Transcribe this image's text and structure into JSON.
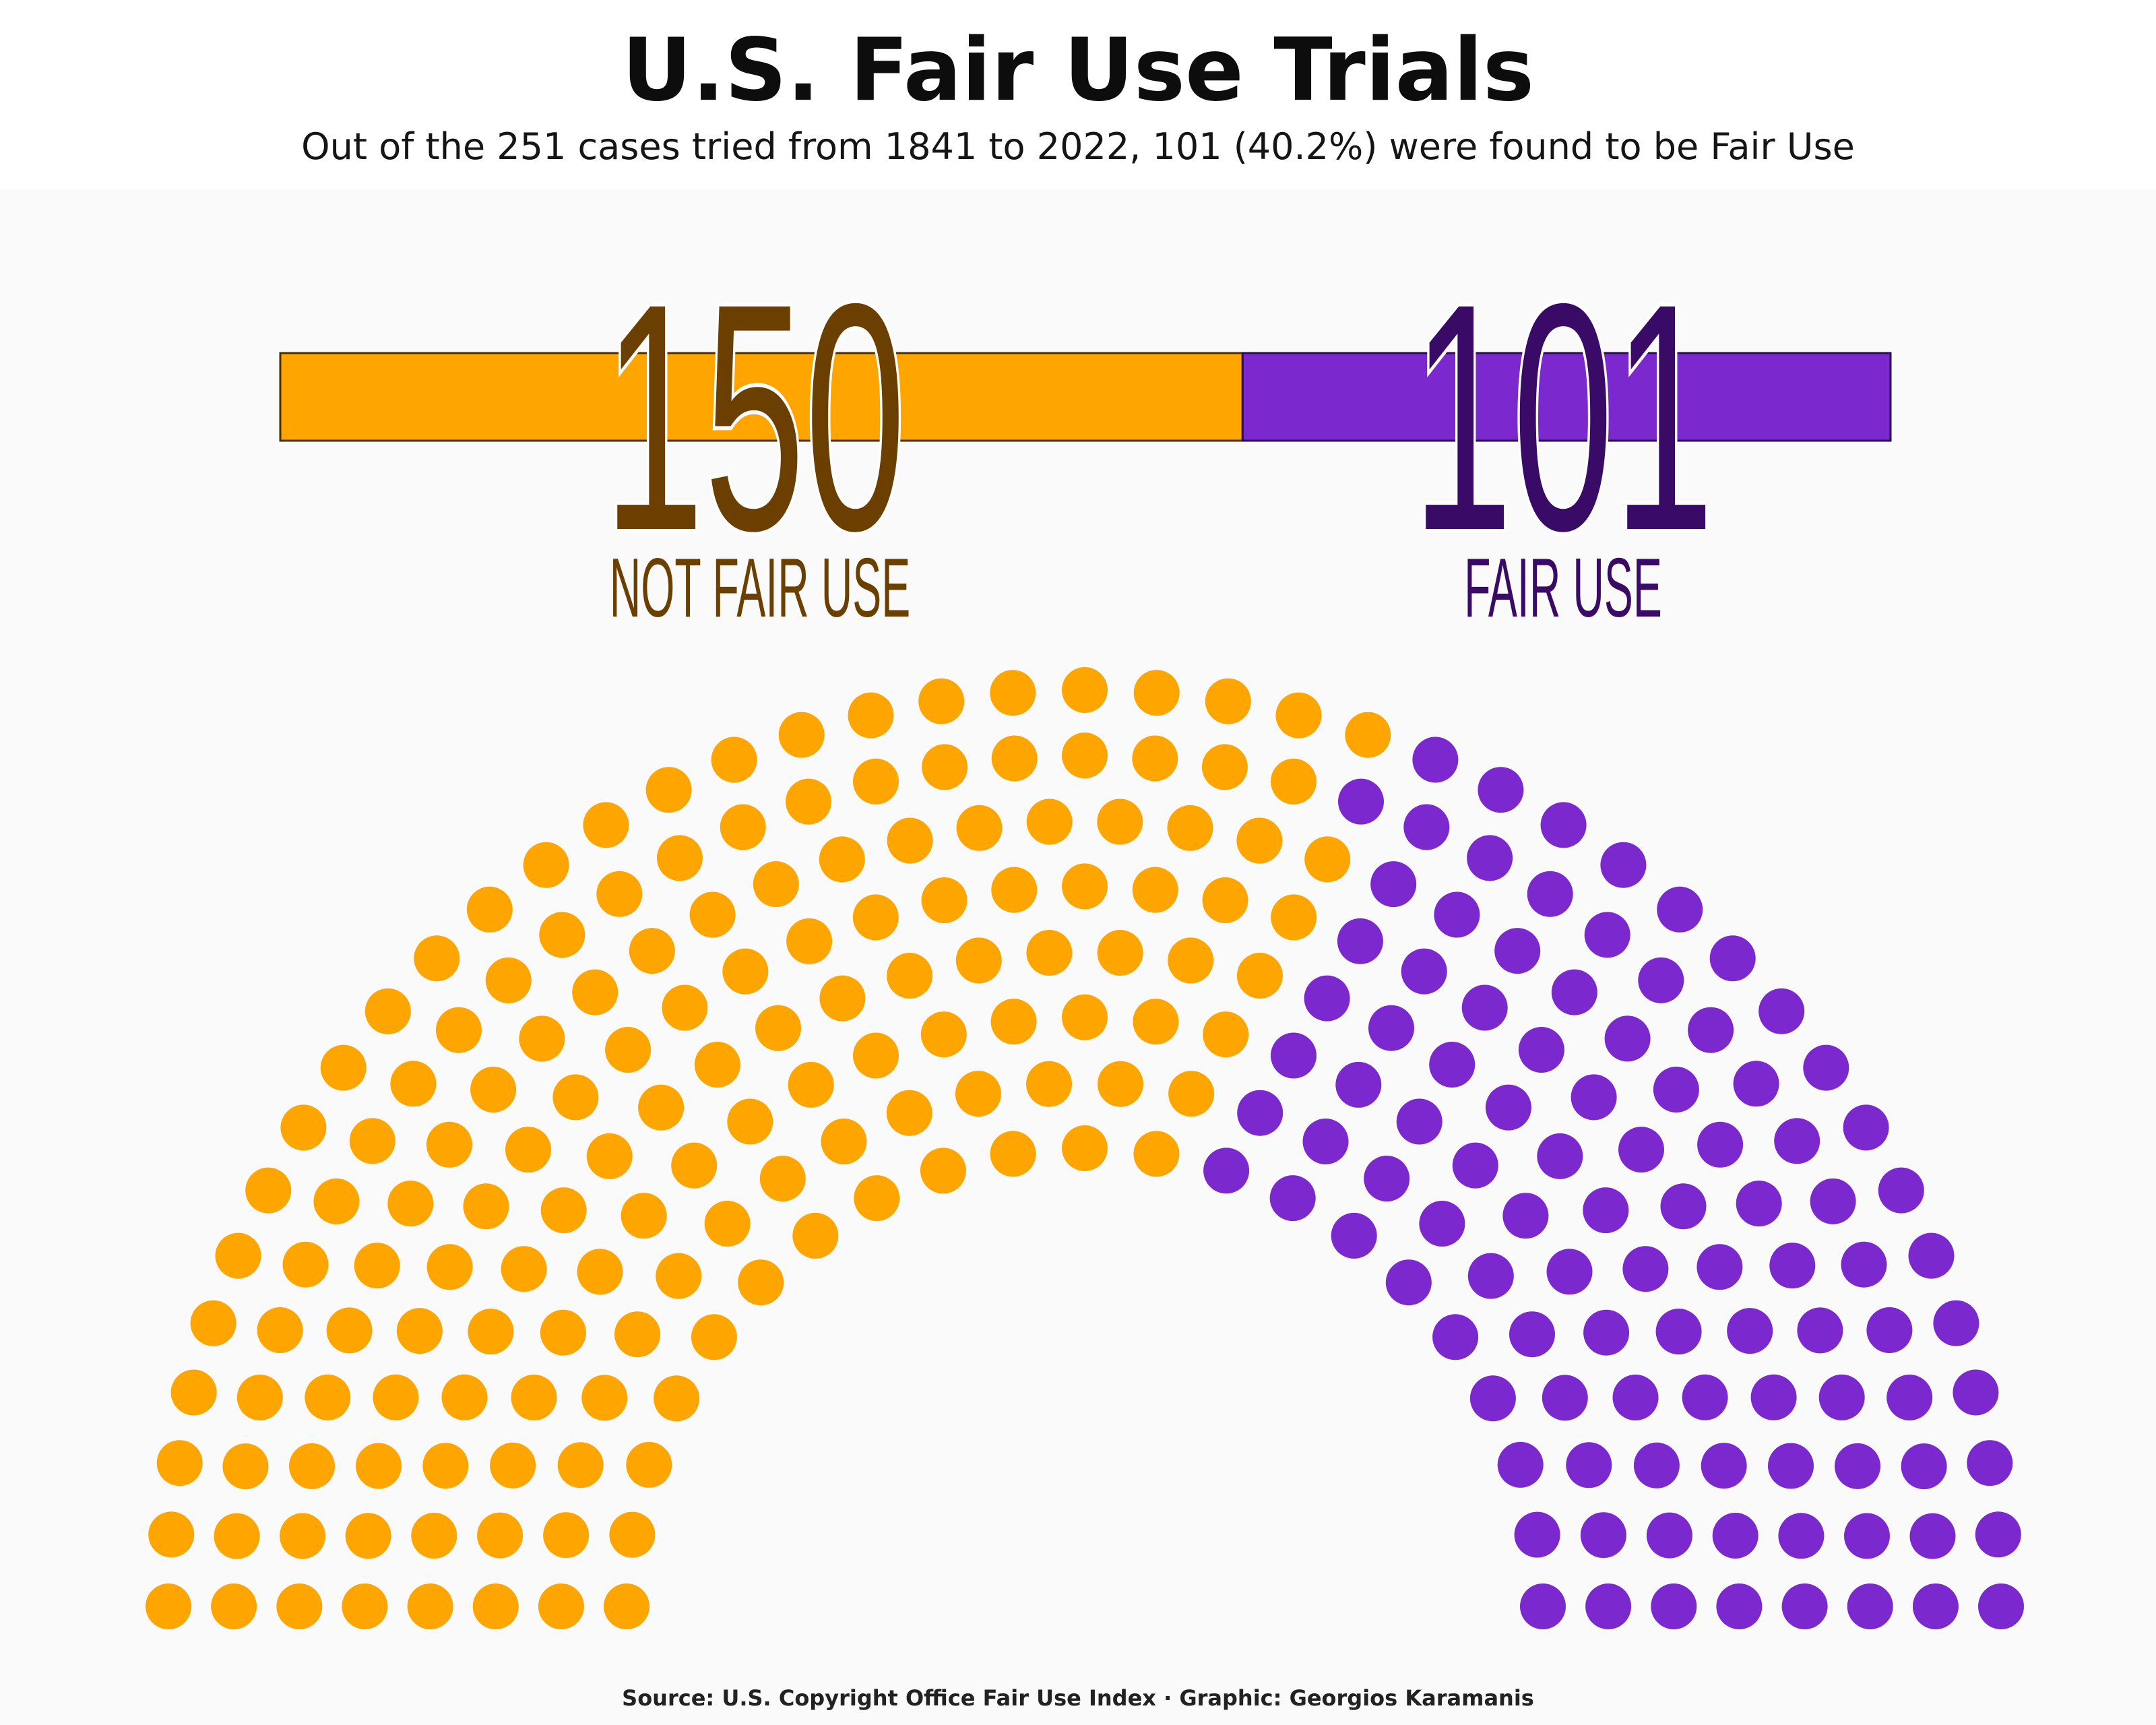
{
  "header": {
    "title": "U.S. Fair Use Trials",
    "subtitle": "Out of the 251 cases tried from 1841 to 2022, 101 (40.2%) were found to be Fair Use"
  },
  "footer": {
    "source": "Source: U.S. Copyright Office Fair Use Index · Graphic: Georgios Karamanis"
  },
  "colors": {
    "not_fair_use": "#FFA500",
    "fair_use": "#7B28CF",
    "not_fair_use_text": "#6B3F00",
    "fair_use_text": "#3A0B66"
  },
  "chart_data": [
    {
      "type": "bar",
      "orientation": "horizontal-stacked",
      "categories": [
        "NOT FAIR USE",
        "FAIR USE"
      ],
      "values": [
        150,
        101
      ],
      "total": 251,
      "labels": {
        "not_fair_use_value": "150",
        "not_fair_use_label": "NOT FAIR USE",
        "fair_use_value": "101",
        "fair_use_label": "FAIR USE"
      }
    },
    {
      "type": "scatter",
      "subtype": "parliament",
      "series": [
        {
          "name": "NOT FAIR USE",
          "count": 150
        },
        {
          "name": "FAIR USE",
          "count": 101
        }
      ],
      "rows": 8,
      "total": 251
    }
  ]
}
